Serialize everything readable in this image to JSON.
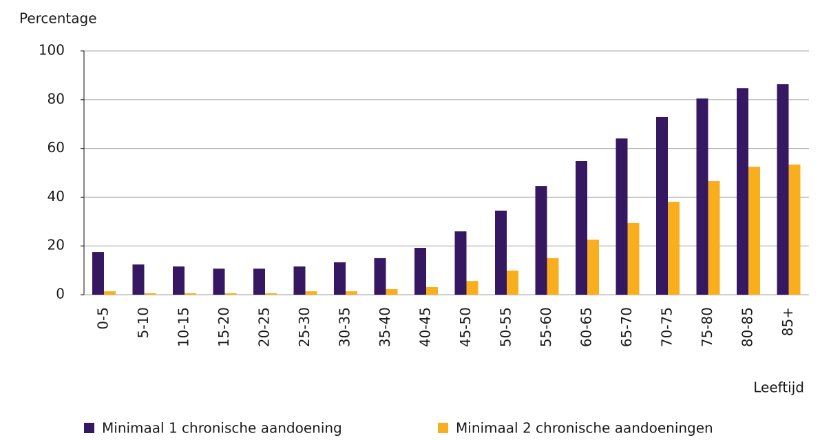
{
  "chart_data": {
    "type": "bar",
    "y_label": "Percentage",
    "x_label": "Leeftijd",
    "categories": [
      "0-5",
      "5-10",
      "10-15",
      "15-20",
      "20-25",
      "25-30",
      "30-35",
      "35-40",
      "40-45",
      "45-50",
      "50-55",
      "55-60",
      "60-65",
      "65-70",
      "70-75",
      "75-80",
      "80-85",
      "85+"
    ],
    "series": [
      {
        "name": "Minimaal 1 chronische aandoening",
        "color": "#361761",
        "values": [
          17.5,
          12.4,
          11.6,
          10.7,
          10.7,
          11.6,
          13.3,
          15,
          19.2,
          26,
          34.5,
          44.6,
          54.8,
          64.1,
          72.9,
          80.5,
          84.7,
          86.4
        ]
      },
      {
        "name": "Minimaal 2 chronische aandoeningen",
        "color": "#f9ae1e",
        "values": [
          1.4,
          0.6,
          0.6,
          0.6,
          0.6,
          1.4,
          1.4,
          2.3,
          3.1,
          5.6,
          9.9,
          15,
          22.6,
          29.4,
          38.1,
          46.6,
          52.5,
          53.4
        ]
      }
    ],
    "ylim": [
      0,
      100
    ],
    "yticks": [
      0,
      20,
      40,
      60,
      80,
      100
    ],
    "grid": true,
    "legend": "bottom"
  }
}
